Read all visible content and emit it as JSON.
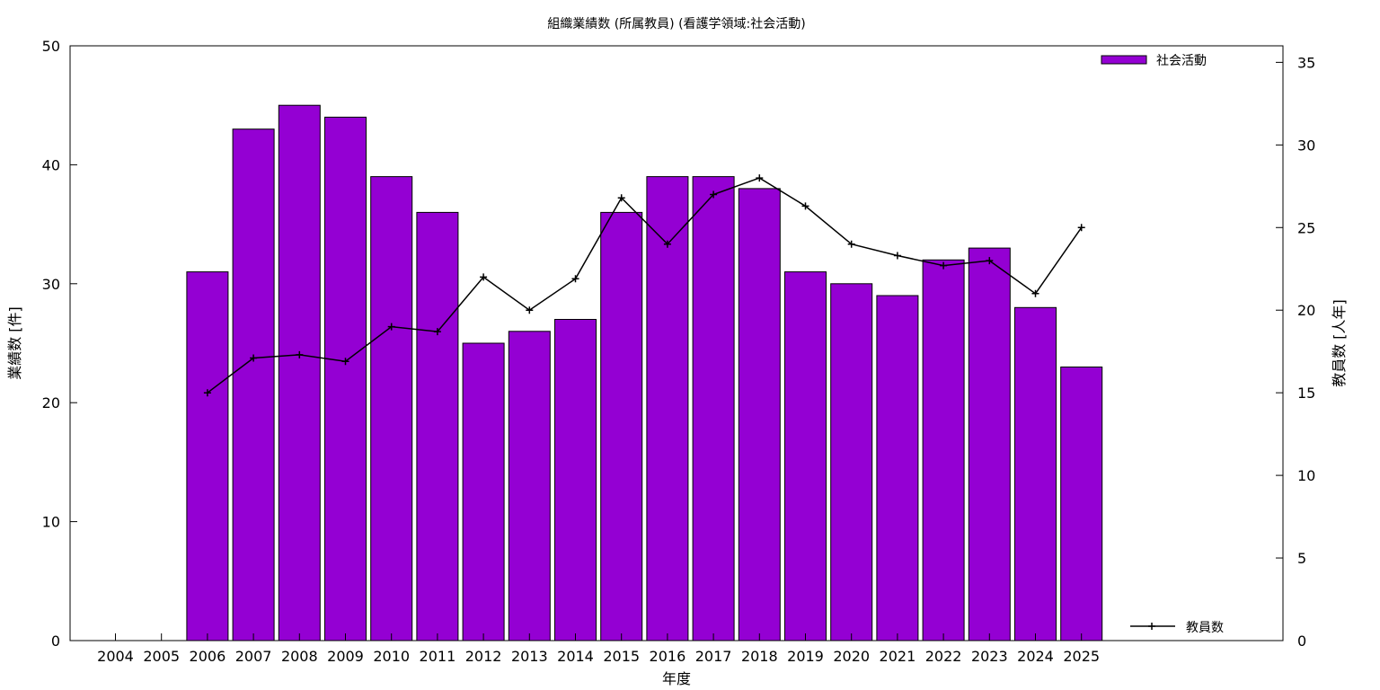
{
  "chart_data": {
    "type": "bar",
    "title": "組織業績数 (所属教員) (看護学領域:社会活動)",
    "xlabel": "年度",
    "ylabel": "業績数 [件]",
    "y2label": "教員数 [人年]",
    "categories": [
      "2004",
      "2005",
      "2006",
      "2007",
      "2008",
      "2009",
      "2010",
      "2011",
      "2012",
      "2013",
      "2014",
      "2015",
      "2016",
      "2017",
      "2018",
      "2019",
      "2020",
      "2021",
      "2022",
      "2023",
      "2024",
      "2025"
    ],
    "ylim": [
      0,
      50
    ],
    "yticks": [
      0,
      10,
      20,
      30,
      40,
      50
    ],
    "y2lim": [
      0,
      36
    ],
    "y2ticks": [
      0,
      5,
      10,
      15,
      20,
      25,
      30,
      35
    ],
    "grid": false,
    "series": [
      {
        "name": "社会活動",
        "type": "bar",
        "axis": "left",
        "color": "#9400d3",
        "values": [
          null,
          null,
          31,
          43,
          45,
          44,
          39,
          36,
          25,
          26,
          27,
          36,
          39,
          39,
          38,
          31,
          30,
          29,
          32,
          33,
          28,
          23
        ]
      },
      {
        "name": "教員数",
        "type": "line",
        "axis": "right",
        "color": "#000000",
        "marker": "plus",
        "values": [
          null,
          null,
          15,
          17.1,
          17.3,
          16.9,
          19,
          18.7,
          22,
          20,
          21.9,
          26.8,
          24,
          27,
          28,
          26.3,
          24,
          23.3,
          22.7,
          23,
          21,
          25
        ]
      }
    ],
    "legend": [
      {
        "label": "社会活動",
        "placement": "top-right"
      },
      {
        "label": "教員数",
        "placement": "bottom-right"
      }
    ]
  }
}
